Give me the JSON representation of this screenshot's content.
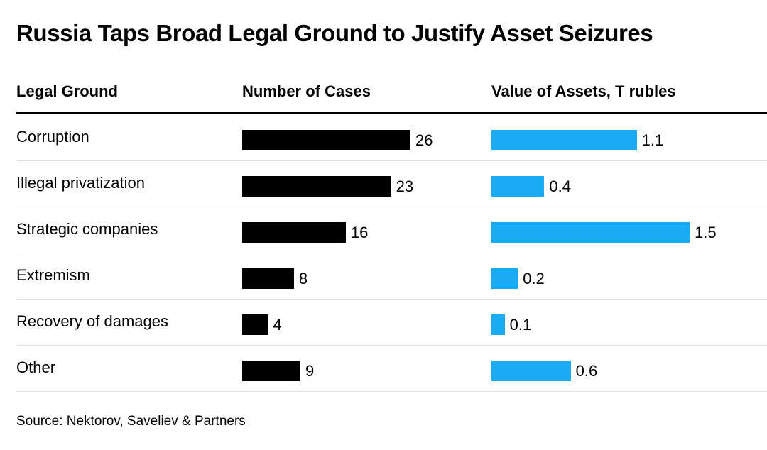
{
  "title": "Russia Taps Broad Legal Ground to Justify Asset Seizures",
  "columns": {
    "ground": "Legal Ground",
    "cases": "Number of Cases",
    "value": "Value of Assets, T rubles"
  },
  "source": "Source: Nektorov, Saveliev & Partners",
  "colors": {
    "cases_bar": "#000000",
    "value_bar": "#1aabf2"
  },
  "chart_data": {
    "type": "bar",
    "orientation": "horizontal",
    "categories": [
      "Corruption",
      "Illegal privatization",
      "Strategic companies",
      "Extremism",
      "Recovery of damages",
      "Other"
    ],
    "series": [
      {
        "name": "Number of Cases",
        "values": [
          26,
          23,
          16,
          8,
          4,
          9
        ],
        "labels": [
          "26",
          "23",
          "16",
          "8",
          "4",
          "9"
        ]
      },
      {
        "name": "Value of Assets, T rubles",
        "values": [
          1.1,
          0.4,
          1.5,
          0.2,
          0.1,
          0.6
        ],
        "labels": [
          "1.1",
          "0.4",
          "1.5",
          "0.2",
          "0.1",
          "0.6"
        ]
      }
    ],
    "title": "Russia Taps Broad Legal Ground to Justify Asset Seizures",
    "grid": false,
    "legend": "none"
  }
}
